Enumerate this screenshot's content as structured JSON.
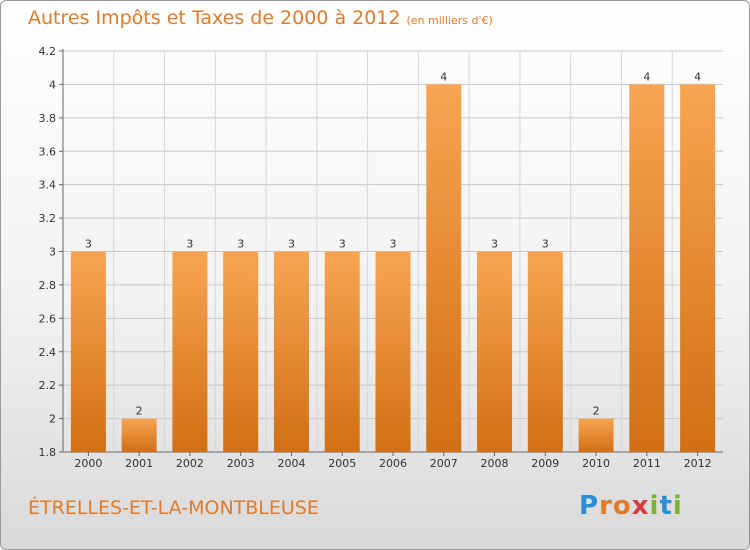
{
  "header": {
    "title": "Autres Impôts et Taxes de 2000 à 2012",
    "unit": "(en milliers d'€)"
  },
  "footer": {
    "commune": "ÉTRELLES-ET-LA-MONTBLEUSE",
    "logo": {
      "letters": [
        "P",
        "r",
        "o",
        "x",
        "i",
        "t",
        "i"
      ],
      "colors": [
        "#2b8fd6",
        "#e07b2a",
        "#e07b2a",
        "#d93a3a",
        "#7bb33a",
        "#2b8fd6",
        "#7bb33a"
      ]
    }
  },
  "colors": {
    "bar_top": "#f7a552",
    "bar_bottom": "#d26f14",
    "accent": "#e07b2a"
  },
  "chart_data": {
    "type": "bar",
    "categories": [
      "2000",
      "2001",
      "2002",
      "2003",
      "2004",
      "2005",
      "2006",
      "2007",
      "2008",
      "2009",
      "2010",
      "2011",
      "2012"
    ],
    "values": [
      3,
      2,
      3,
      3,
      3,
      3,
      3,
      4,
      3,
      3,
      2,
      4,
      4
    ],
    "data_labels": [
      "3",
      "2",
      "3",
      "3",
      "3",
      "3",
      "3",
      "4",
      "3",
      "3",
      "2",
      "4",
      "4"
    ],
    "yticks": [
      "1.8",
      "2",
      "2.2",
      "2.4",
      "2.6",
      "2.8",
      "3",
      "3.2",
      "3.4",
      "3.6",
      "3.8",
      "4",
      "4.2"
    ],
    "ylim": [
      1.8,
      4.2
    ],
    "grid": true
  }
}
